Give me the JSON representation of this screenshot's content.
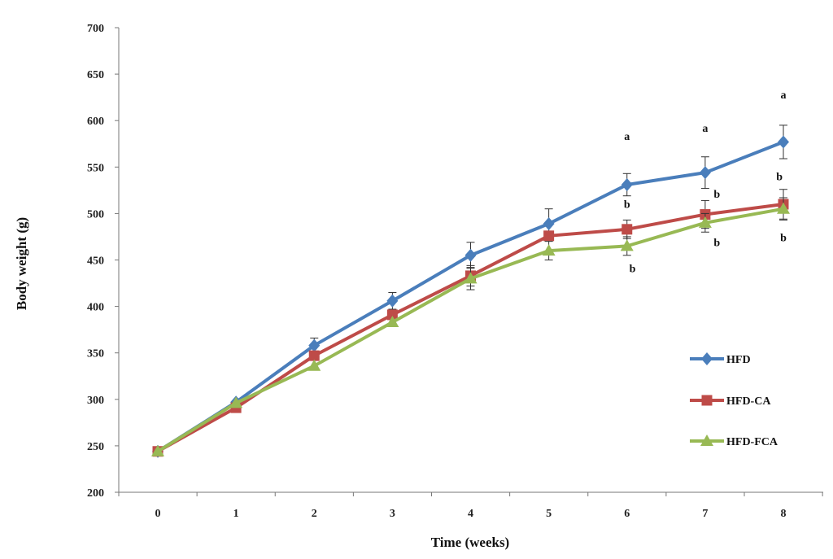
{
  "chart_data": {
    "type": "line",
    "xlabel": "Time (weeks)",
    "ylabel": "Body weight (g)",
    "x": [
      0,
      1,
      2,
      3,
      4,
      5,
      6,
      7,
      8
    ],
    "ylim": [
      200,
      700
    ],
    "yticks": [
      200,
      250,
      300,
      350,
      400,
      450,
      500,
      550,
      600,
      650,
      700
    ],
    "grid": false,
    "legend_position": "right",
    "series": [
      {
        "name": "HFD",
        "color": "#4a7ebb",
        "marker": "diamond",
        "values": [
          244,
          297,
          358,
          406,
          455,
          489,
          531,
          544,
          577
        ],
        "error": [
          0,
          0,
          8,
          9,
          14,
          16,
          12,
          17,
          18
        ]
      },
      {
        "name": "HFD-CA",
        "color": "#be4b48",
        "marker": "square",
        "values": [
          244,
          291,
          347,
          391,
          433,
          476,
          483,
          499,
          510
        ],
        "error": [
          0,
          0,
          0,
          0,
          11,
          0,
          10,
          15,
          16
        ]
      },
      {
        "name": "HFD-FCA",
        "color": "#98b954",
        "marker": "triangle",
        "values": [
          244,
          296,
          336,
          383,
          430,
          460,
          465,
          490,
          505
        ],
        "error": [
          0,
          0,
          0,
          0,
          12,
          10,
          10,
          10,
          12
        ]
      }
    ],
    "annotations": [
      {
        "text": "a",
        "x": 6,
        "y": 579
      },
      {
        "text": "b",
        "x": 6,
        "y": 506
      },
      {
        "text": "b",
        "x": 6.07,
        "y": 437
      },
      {
        "text": "a",
        "x": 7,
        "y": 588
      },
      {
        "text": "b",
        "x": 7.15,
        "y": 517
      },
      {
        "text": "b",
        "x": 7.15,
        "y": 465
      },
      {
        "text": "a",
        "x": 8,
        "y": 624
      },
      {
        "text": "b",
        "x": 7.95,
        "y": 536
      },
      {
        "text": "b",
        "x": 8,
        "y": 470
      }
    ]
  }
}
